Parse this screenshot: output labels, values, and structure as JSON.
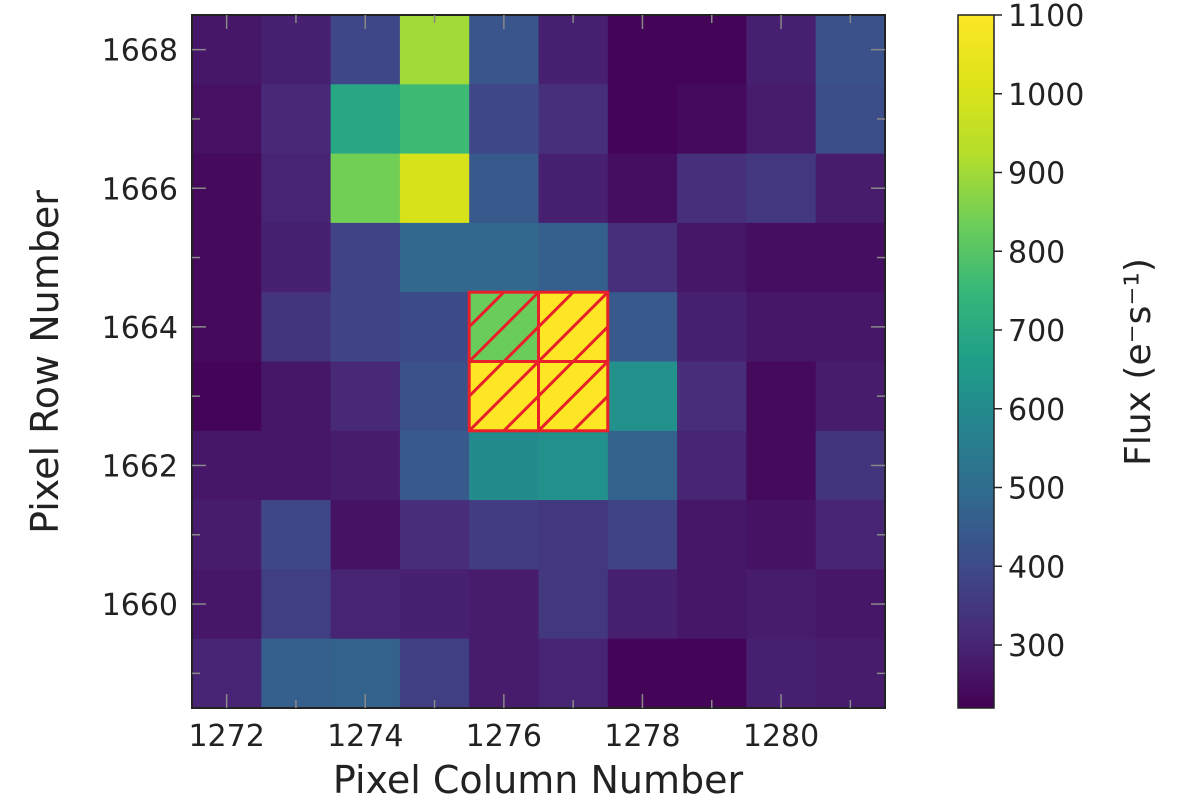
{
  "chart_data": {
    "type": "heatmap",
    "xlabel": "Pixel Column Number",
    "ylabel": "Pixel Row Number",
    "colorbar_label": "Flux (e⁻s⁻¹)",
    "colormap": "viridis",
    "vmin": 220,
    "vmax": 1100,
    "columns": [
      1272,
      1273,
      1274,
      1275,
      1276,
      1277,
      1278,
      1279,
      1280,
      1281
    ],
    "rows": [
      1668,
      1667,
      1666,
      1665,
      1664,
      1663,
      1662,
      1661,
      1660,
      1659
    ],
    "x_ticks": [
      "1272",
      "1274",
      "1276",
      "1278",
      "1280"
    ],
    "y_ticks": [
      "1668",
      "1666",
      "1664",
      "1662",
      "1660"
    ],
    "colorbar_ticks": [
      "1100",
      "1000",
      "900",
      "800",
      "700",
      "600",
      "500",
      "400",
      "300"
    ],
    "values": [
      [
        270,
        290,
        390,
        900,
        430,
        290,
        230,
        230,
        290,
        420
      ],
      [
        255,
        310,
        690,
        760,
        390,
        330,
        230,
        240,
        280,
        410
      ],
      [
        240,
        300,
        840,
        1000,
        440,
        290,
        250,
        330,
        350,
        280
      ],
      [
        240,
        290,
        380,
        480,
        480,
        460,
        330,
        270,
        250,
        250
      ],
      [
        240,
        340,
        380,
        400,
        830,
        1100,
        440,
        290,
        270,
        270
      ],
      [
        230,
        270,
        310,
        420,
        1100,
        1100,
        620,
        320,
        240,
        280
      ],
      [
        270,
        270,
        280,
        440,
        600,
        620,
        470,
        300,
        240,
        340
      ],
      [
        280,
        390,
        260,
        320,
        360,
        350,
        380,
        270,
        260,
        300
      ],
      [
        270,
        370,
        300,
        290,
        280,
        350,
        290,
        270,
        280,
        270
      ],
      [
        300,
        460,
        470,
        370,
        280,
        300,
        230,
        230,
        290,
        280
      ]
    ],
    "aperture": {
      "color": "#e8202a",
      "pixels": [
        [
          1276,
          1664
        ],
        [
          1277,
          1664
        ],
        [
          1276,
          1663
        ],
        [
          1277,
          1663
        ]
      ]
    }
  }
}
